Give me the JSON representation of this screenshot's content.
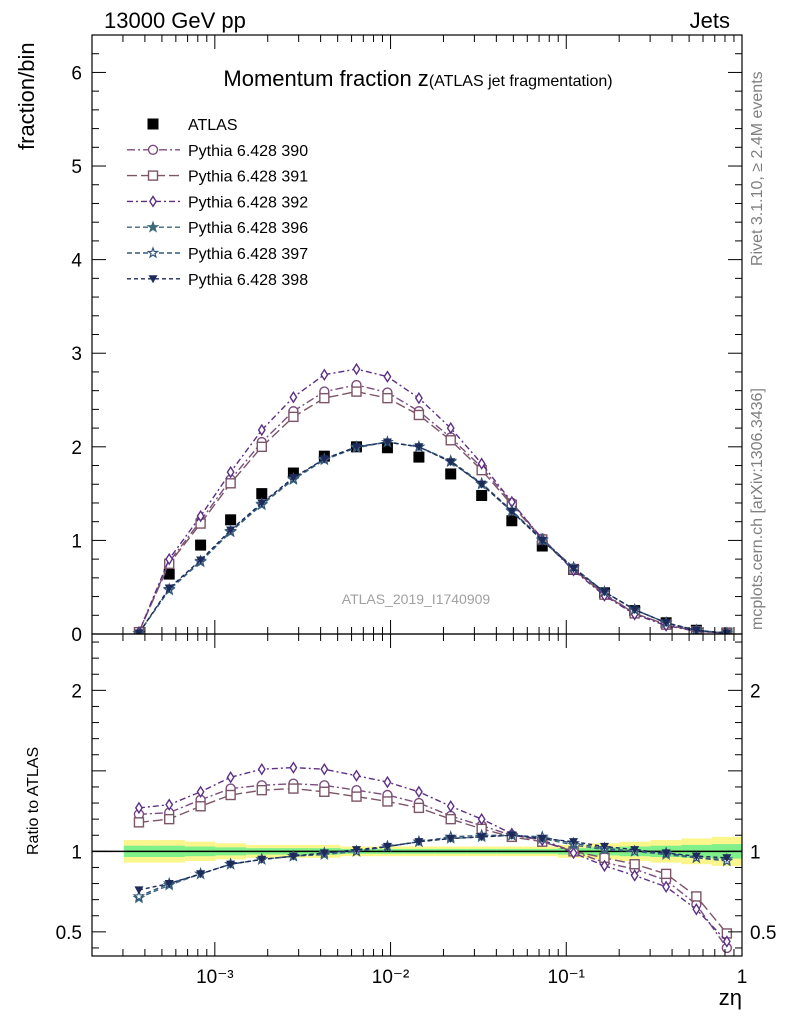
{
  "header": {
    "left": "13000 GeV pp",
    "right": "Jets"
  },
  "side_labels": {
    "rivet": "Rivet 3.1.10, ≥ 2.4M events",
    "mcplots": "mcplots.cern.ch [arXiv:1306.3436]"
  },
  "watermark": "ATLAS_2019_I1740909",
  "chart_data": [
    {
      "type": "scatter",
      "panel": "main",
      "title_main": "Momentum fraction z",
      "title_sub": "(ATLAS jet fragmentation)",
      "ylabel": "fraction/bin",
      "xlabel": "zη",
      "xscale": "log",
      "xlim": [
        0.0002,
        1
      ],
      "ylim": [
        0,
        6.4
      ],
      "yticks": [
        "0",
        "1",
        "2",
        "3",
        "4",
        "5",
        "6"
      ],
      "xtick_labels": {
        "0.001": "10⁻³",
        "0.01": "10⁻²",
        "0.1": "10⁻¹",
        "1": "1"
      },
      "legend_position": "top-left",
      "x": [
        0.00037,
        0.00055,
        0.00083,
        0.00123,
        0.00185,
        0.0028,
        0.0042,
        0.0064,
        0.0096,
        0.0145,
        0.022,
        0.033,
        0.049,
        0.073,
        0.11,
        0.165,
        0.245,
        0.37,
        0.55,
        0.82
      ],
      "series": [
        {
          "name": "ATLAS",
          "color": "#000000",
          "marker": "square-filled",
          "dash": "none",
          "values": [
            null,
            0.64,
            0.95,
            1.22,
            1.5,
            1.72,
            1.9,
            2.0,
            1.99,
            1.89,
            1.71,
            1.48,
            1.21,
            0.94,
            0.69,
            0.44,
            0.25,
            0.12,
            0.04,
            0.01
          ]
        },
        {
          "name": "Pythia 6.428 390",
          "color": "#7b4d7e",
          "marker": "circle-open",
          "dash": "8 3 2 3",
          "values": [
            0.02,
            0.77,
            1.21,
            1.65,
            2.05,
            2.38,
            2.59,
            2.66,
            2.58,
            2.38,
            2.1,
            1.78,
            1.4,
            1.02,
            0.7,
            0.43,
            0.22,
            0.1,
            0.03,
            0.01
          ]
        },
        {
          "name": "Pythia 6.428 391",
          "color": "#7c5567",
          "marker": "square-open",
          "dash": "10 4",
          "values": [
            0.02,
            0.75,
            1.18,
            1.61,
            2.0,
            2.32,
            2.52,
            2.59,
            2.52,
            2.34,
            2.07,
            1.75,
            1.38,
            1.01,
            0.69,
            0.42,
            0.22,
            0.1,
            0.03,
            0.01
          ]
        },
        {
          "name": "Pythia 6.428 392",
          "color": "#5b2f85",
          "marker": "diamond-open",
          "dash": "6 3 2 3",
          "values": [
            0.02,
            0.8,
            1.26,
            1.73,
            2.18,
            2.53,
            2.77,
            2.83,
            2.75,
            2.52,
            2.2,
            1.82,
            1.41,
            1.01,
            0.68,
            0.41,
            0.21,
            0.09,
            0.03,
            0.01
          ]
        },
        {
          "name": "Pythia 6.428 396",
          "color": "#3f6a7d",
          "marker": "star-filled",
          "dash": "5 3",
          "values": [
            0.01,
            0.47,
            0.77,
            1.09,
            1.38,
            1.65,
            1.86,
            1.99,
            2.05,
            2.0,
            1.84,
            1.6,
            1.31,
            1.0,
            0.71,
            0.45,
            0.26,
            0.12,
            0.04,
            0.01
          ]
        },
        {
          "name": "Pythia 6.428 397",
          "color": "#35587a",
          "marker": "star-open",
          "dash": "5 3",
          "values": [
            0.01,
            0.48,
            0.78,
            1.1,
            1.39,
            1.66,
            1.87,
            2.0,
            2.05,
            2.0,
            1.85,
            1.61,
            1.32,
            1.01,
            0.71,
            0.45,
            0.26,
            0.12,
            0.04,
            0.01
          ]
        },
        {
          "name": "Pythia 6.428 398",
          "color": "#1d2a5a",
          "marker": "triangle-down-filled",
          "dash": "4 3",
          "values": [
            0.01,
            0.49,
            0.79,
            1.11,
            1.4,
            1.67,
            1.87,
            2.0,
            2.05,
            2.0,
            1.84,
            1.6,
            1.31,
            1.0,
            0.7,
            0.45,
            0.26,
            0.12,
            0.04,
            0.01
          ]
        }
      ]
    },
    {
      "type": "scatter",
      "panel": "ratio",
      "ylabel": "Ratio to ATLAS",
      "xscale": "log",
      "xlim": [
        0.0002,
        1
      ],
      "ylim": [
        0.35,
        2.35
      ],
      "yticks": [
        "0.5",
        "1",
        "2"
      ],
      "x": [
        0.00037,
        0.00055,
        0.00083,
        0.00123,
        0.00185,
        0.0028,
        0.0042,
        0.0064,
        0.0096,
        0.0145,
        0.022,
        0.033,
        0.049,
        0.073,
        0.11,
        0.165,
        0.245,
        0.37,
        0.55,
        0.82
      ],
      "band_outer": [
        0.07,
        0.07,
        0.06,
        0.05,
        0.04,
        0.04,
        0.04,
        0.03,
        0.03,
        0.03,
        0.03,
        0.03,
        0.03,
        0.03,
        0.04,
        0.05,
        0.06,
        0.07,
        0.08,
        0.09
      ],
      "band_inner": [
        0.035,
        0.035,
        0.03,
        0.025,
        0.02,
        0.02,
        0.02,
        0.015,
        0.015,
        0.015,
        0.015,
        0.015,
        0.015,
        0.015,
        0.02,
        0.025,
        0.03,
        0.035,
        0.04,
        0.045
      ],
      "series": [
        {
          "name": "Pythia 6.428 390",
          "color": "#7b4d7e",
          "marker": "circle-open",
          "dash": "8 3 2 3",
          "values": [
            1.23,
            1.24,
            1.32,
            1.39,
            1.41,
            1.42,
            1.41,
            1.38,
            1.35,
            1.3,
            1.22,
            1.16,
            1.1,
            1.07,
            1.0,
            0.93,
            0.89,
            0.82,
            0.67,
            0.4
          ]
        },
        {
          "name": "Pythia 6.428 391",
          "color": "#7c5567",
          "marker": "square-open",
          "dash": "10 4",
          "values": [
            1.18,
            1.2,
            1.28,
            1.35,
            1.38,
            1.39,
            1.37,
            1.34,
            1.31,
            1.27,
            1.2,
            1.14,
            1.09,
            1.06,
            1.0,
            0.96,
            0.92,
            0.86,
            0.72,
            0.49
          ]
        },
        {
          "name": "Pythia 6.428 392",
          "color": "#5b2f85",
          "marker": "diamond-open",
          "dash": "6 3 2 3",
          "values": [
            1.27,
            1.29,
            1.37,
            1.46,
            1.51,
            1.52,
            1.51,
            1.47,
            1.43,
            1.37,
            1.28,
            1.2,
            1.11,
            1.07,
            0.99,
            0.91,
            0.85,
            0.78,
            0.64,
            0.44
          ]
        },
        {
          "name": "Pythia 6.428 396",
          "color": "#3f6a7d",
          "marker": "star-filled",
          "dash": "5 3",
          "values": [
            0.71,
            0.79,
            0.86,
            0.92,
            0.95,
            0.97,
            0.98,
            1.0,
            1.03,
            1.06,
            1.08,
            1.09,
            1.1,
            1.08,
            1.04,
            1.01,
            1.0,
            0.98,
            0.96,
            0.95
          ]
        },
        {
          "name": "Pythia 6.428 397",
          "color": "#35587a",
          "marker": "star-open",
          "dash": "5 3",
          "values": [
            0.72,
            0.8,
            0.86,
            0.92,
            0.95,
            0.97,
            0.99,
            1.0,
            1.03,
            1.06,
            1.09,
            1.1,
            1.1,
            1.09,
            1.05,
            1.02,
            1.0,
            0.99,
            0.96,
            0.94
          ]
        },
        {
          "name": "Pythia 6.428 398",
          "color": "#1d2a5a",
          "marker": "triangle-down-filled",
          "dash": "4 3",
          "values": [
            0.76,
            0.8,
            0.86,
            0.92,
            0.95,
            0.97,
            0.99,
            1.01,
            1.03,
            1.06,
            1.08,
            1.09,
            1.1,
            1.08,
            1.06,
            1.03,
            1.01,
            0.99,
            0.97,
            0.96
          ]
        }
      ]
    }
  ]
}
